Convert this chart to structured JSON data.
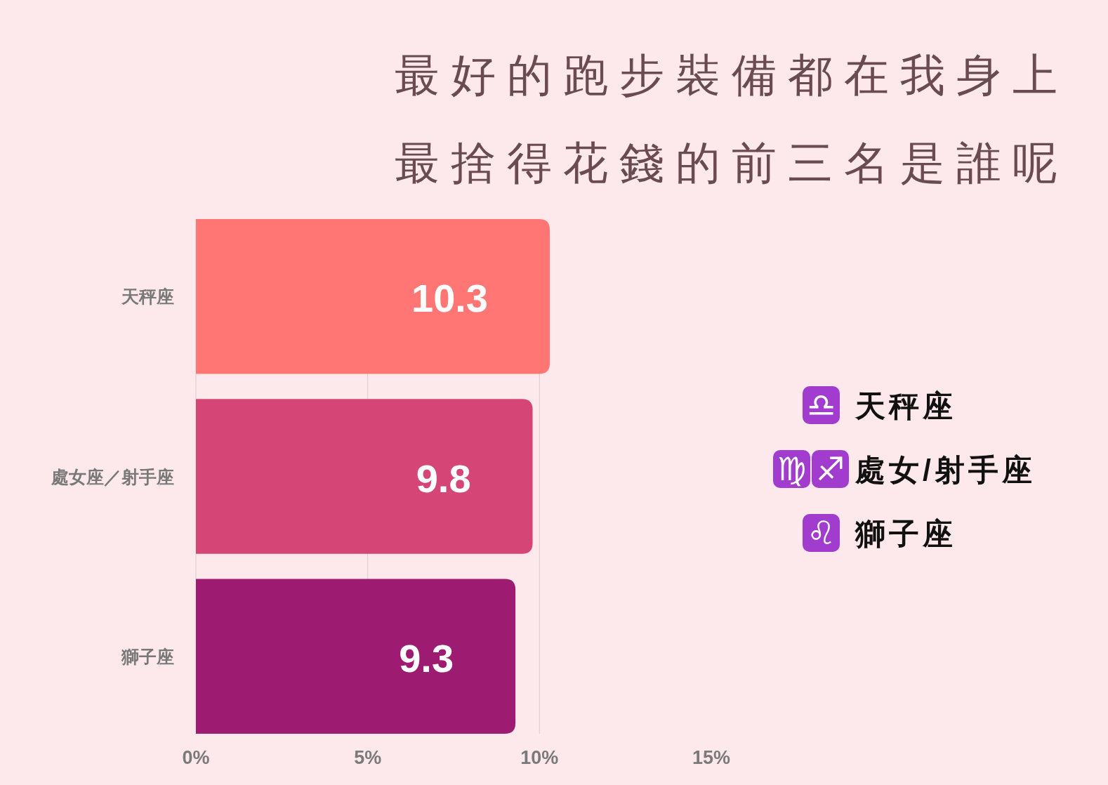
{
  "chart_data": {
    "type": "bar",
    "orientation": "horizontal",
    "title": "最好的跑步裝備都在我身上",
    "subtitle": "最捨得花錢的前三名是誰呢",
    "categories": [
      "天秤座",
      "處女座／射手座",
      "獅子座"
    ],
    "values": [
      10.3,
      9.8,
      9.3
    ],
    "colors": [
      "#ff7675",
      "#d54677",
      "#9d1c72"
    ],
    "xlim": [
      0,
      15
    ],
    "xticks": [
      {
        "value": 0,
        "label": "0%"
      },
      {
        "value": 5,
        "label": "5%"
      },
      {
        "value": 10,
        "label": "10%"
      },
      {
        "value": 15,
        "label": "15%"
      }
    ],
    "grid": "x",
    "data_labels": true,
    "annotations": [
      "♎ 天秤座",
      "♍♐處女/射手座",
      "♌ 獅子座"
    ]
  }
}
